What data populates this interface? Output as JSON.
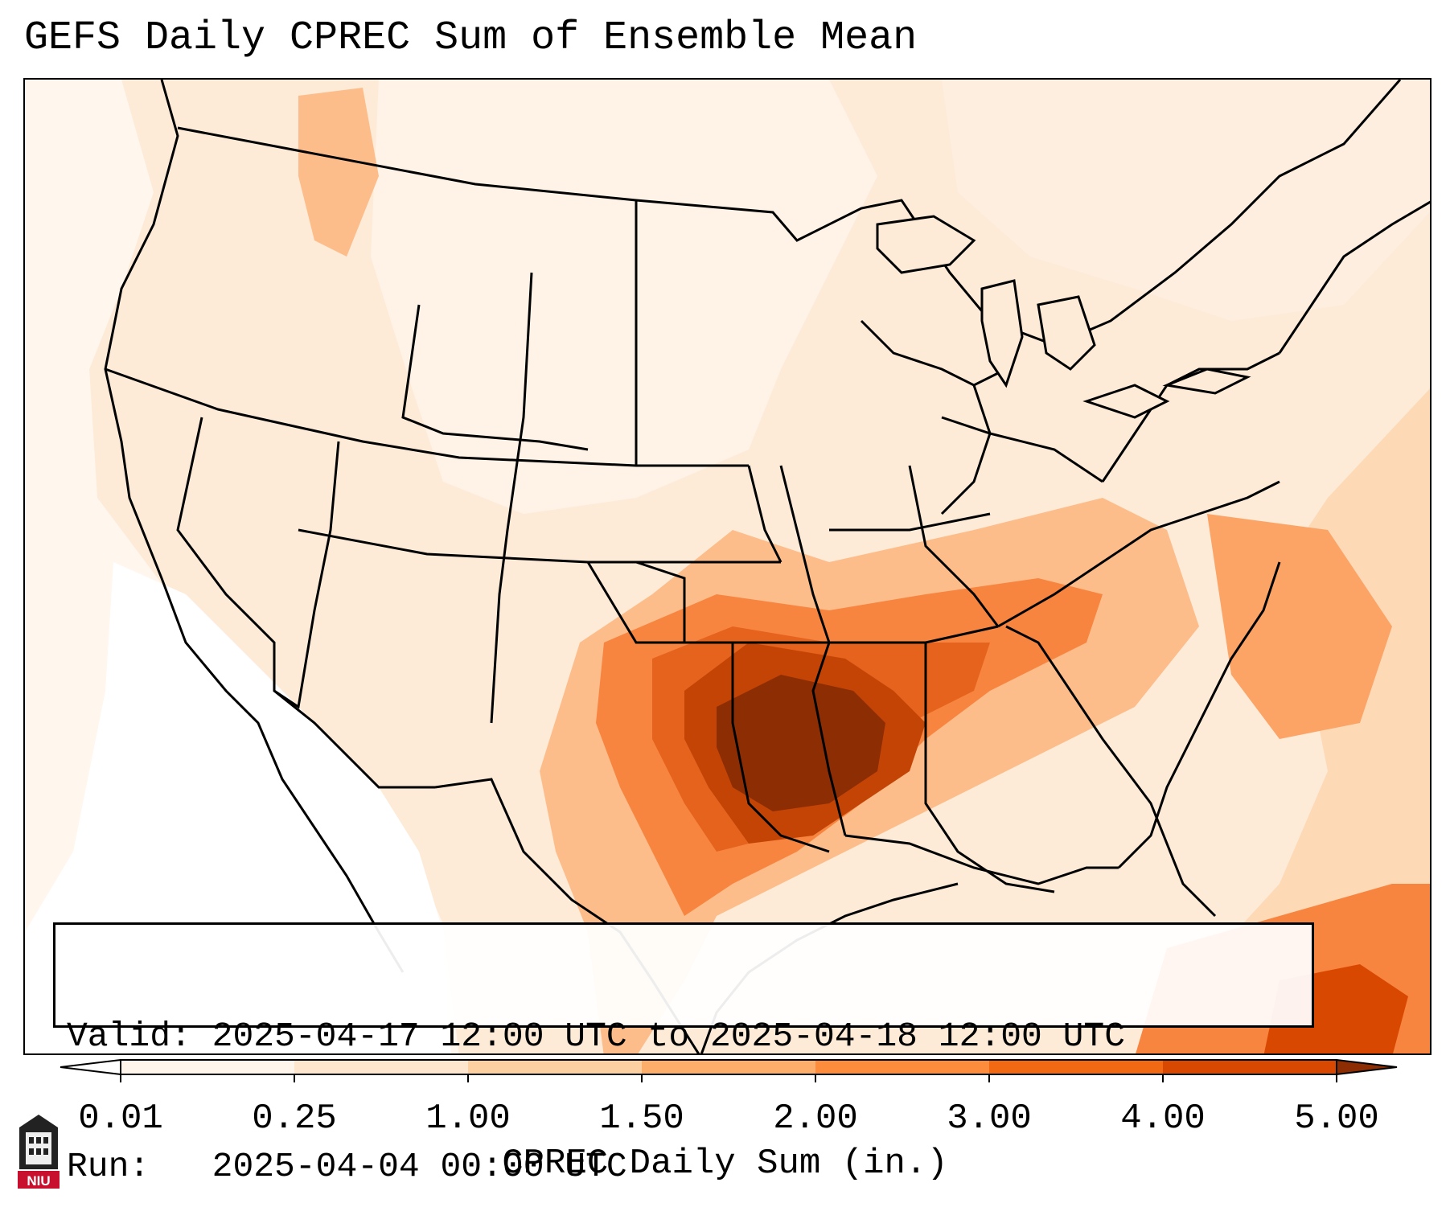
{
  "title": "GEFS Daily CPREC Sum of Ensemble Mean",
  "info": {
    "valid_key": "Valid:",
    "valid_value": "2025-04-17 12:00 UTC to 2025-04-18 12:00 UTC",
    "run_key": "Run:",
    "run_value": "2025-04-04 00:00 UTC"
  },
  "colorbar": {
    "label": "CPREC Daily Sum (in.)",
    "ticks": [
      "0.01",
      "0.25",
      "1.00",
      "1.50",
      "2.00",
      "3.00",
      "4.00",
      "5.00"
    ],
    "colors": [
      "#fff5eb",
      "#fee6ce",
      "#fdd0a2",
      "#fdae6b",
      "#fd8d3c",
      "#f16913",
      "#d94801",
      "#8c2d04"
    ]
  },
  "map": {
    "background_color": "#fdebd8",
    "land_outline_color": "#000000"
  },
  "logo": {
    "text": "NIU",
    "color": "#c8102e"
  }
}
